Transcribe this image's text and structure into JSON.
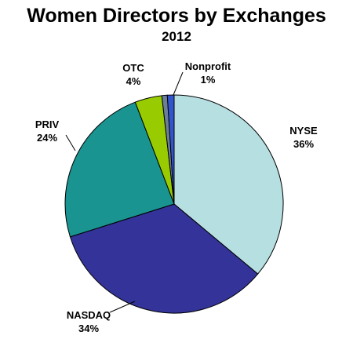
{
  "chart_data": {
    "type": "pie",
    "title": "Women Directors by Exchanges",
    "subtitle": "2012",
    "slices": [
      {
        "label": "NYSE",
        "value": 36,
        "value_label": "36%",
        "color": "#b6dfe1"
      },
      {
        "label": "NASDAQ",
        "value": 34,
        "value_label": "34%",
        "color": "#333399"
      },
      {
        "label": "PRIV",
        "value": 24,
        "value_label": "24%",
        "color": "#1a9490"
      },
      {
        "label": "OTC",
        "value": 4,
        "value_label": "4%",
        "color": "#99cc00"
      },
      {
        "label": "",
        "value": 0.8,
        "value_label": "",
        "color": "#6b7f99"
      },
      {
        "label": "Nonprofit",
        "value": 1,
        "value_label": "1%",
        "color": "#3355cc"
      }
    ],
    "start_angle_deg": 0,
    "direction": "clockwise",
    "legend": "none"
  }
}
